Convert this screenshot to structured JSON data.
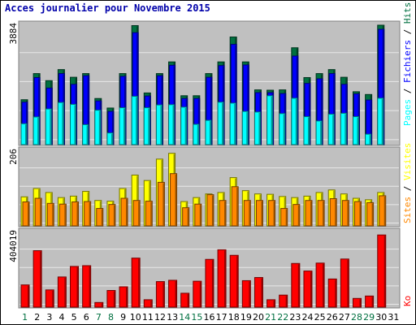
{
  "title": "Acces journalier pour Novembre 2015",
  "colors": {
    "panel_bg": "#c0c0c0",
    "grid": "#e8e8e8",
    "pages": "#00ffff",
    "files": "#0000ff",
    "hits": "#007040",
    "visits": "#ffff00",
    "sites": "#ff8800",
    "ko": "#ff0000",
    "weekend_day": "#007040",
    "week_day": "#000000"
  },
  "chart_data": [
    {
      "type": "bar",
      "panel": "top",
      "ymax_label": "3884",
      "ylim": [
        0,
        3884
      ],
      "legend": {
        "pages": "Pages",
        "files": "Fichiers",
        "hits": "Hits",
        "sep1": " / ",
        "sep2": " / "
      },
      "categories": [
        "1",
        "2",
        "3",
        "4",
        "5",
        "6",
        "7",
        "8",
        "9",
        "10",
        "11",
        "12",
        "13",
        "14",
        "15",
        "16",
        "17",
        "18",
        "19",
        "20",
        "21",
        "22",
        "23",
        "24",
        "25",
        "26",
        "27",
        "28",
        "29",
        "30",
        "31"
      ],
      "series": [
        {
          "name": "Hits",
          "values": [
            1460,
            2310,
            2080,
            2440,
            2190,
            2310,
            1500,
            1190,
            2310,
            3870,
            1680,
            2310,
            2690,
            1590,
            1590,
            2310,
            2690,
            3500,
            2690,
            1780,
            1770,
            1780,
            3150,
            2180,
            2310,
            2440,
            2190,
            1720,
            1630,
            3950,
            0
          ]
        },
        {
          "name": "Fichiers",
          "values": [
            1380,
            2180,
            1840,
            2310,
            1960,
            2240,
            1420,
            1080,
            2220,
            3640,
            1580,
            2240,
            2580,
            1500,
            1500,
            2190,
            2570,
            3260,
            2590,
            1690,
            1690,
            1660,
            2880,
            1990,
            2140,
            2310,
            1960,
            1650,
            1450,
            3750,
            0
          ]
        },
        {
          "name": "Pages",
          "values": [
            680,
            900,
            1160,
            1370,
            1310,
            650,
            1120,
            380,
            1200,
            1570,
            1200,
            1290,
            1300,
            1220,
            660,
            790,
            1380,
            1350,
            1080,
            1060,
            1590,
            1010,
            1510,
            910,
            770,
            990,
            1020,
            910,
            340,
            1510,
            0
          ]
        }
      ]
    },
    {
      "type": "bar",
      "panel": "middle",
      "ymax_label": "206",
      "ylim": [
        0,
        206
      ],
      "legend": {
        "sites": "Sites",
        "visits": "Visites",
        "sep": " / "
      },
      "categories": [
        "1",
        "2",
        "3",
        "4",
        "5",
        "6",
        "7",
        "8",
        "9",
        "10",
        "11",
        "12",
        "13",
        "14",
        "15",
        "16",
        "17",
        "18",
        "19",
        "20",
        "21",
        "22",
        "23",
        "24",
        "25",
        "26",
        "27",
        "28",
        "29",
        "30",
        "31"
      ],
      "series": [
        {
          "name": "Visites",
          "values": [
            80,
            103,
            92,
            78,
            82,
            95,
            70,
            68,
            103,
            140,
            125,
            184,
            200,
            67,
            78,
            88,
            92,
            133,
            97,
            88,
            87,
            81,
            78,
            82,
            92,
            99,
            88,
            76,
            72,
            92,
            0
          ]
        },
        {
          "name": "Sites",
          "values": [
            66,
            76,
            62,
            60,
            66,
            67,
            48,
            59,
            76,
            70,
            68,
            120,
            144,
            50,
            60,
            86,
            70,
            108,
            70,
            70,
            70,
            48,
            59,
            70,
            70,
            75,
            70,
            67,
            64,
            83,
            0
          ]
        }
      ]
    },
    {
      "type": "bar",
      "panel": "bottom",
      "ymax_label": "404019",
      "ylim": [
        0,
        404019
      ],
      "legend": {
        "ko": "Ko"
      },
      "categories": [
        "1",
        "2",
        "3",
        "4",
        "5",
        "6",
        "7",
        "8",
        "9",
        "10",
        "11",
        "12",
        "13",
        "14",
        "15",
        "16",
        "17",
        "18",
        "19",
        "20",
        "21",
        "22",
        "23",
        "24",
        "25",
        "26",
        "27",
        "28",
        "29",
        "30",
        "31"
      ],
      "series": [
        {
          "name": "Ko",
          "values": [
            120000,
            305000,
            93000,
            163000,
            220000,
            224000,
            25000,
            90000,
            110000,
            265000,
            40000,
            138000,
            145000,
            75000,
            140000,
            258000,
            310000,
            280000,
            143000,
            160000,
            40000,
            65000,
            236000,
            195000,
            238000,
            152000,
            260000,
            47000,
            60000,
            390000,
            0
          ]
        }
      ]
    }
  ]
}
